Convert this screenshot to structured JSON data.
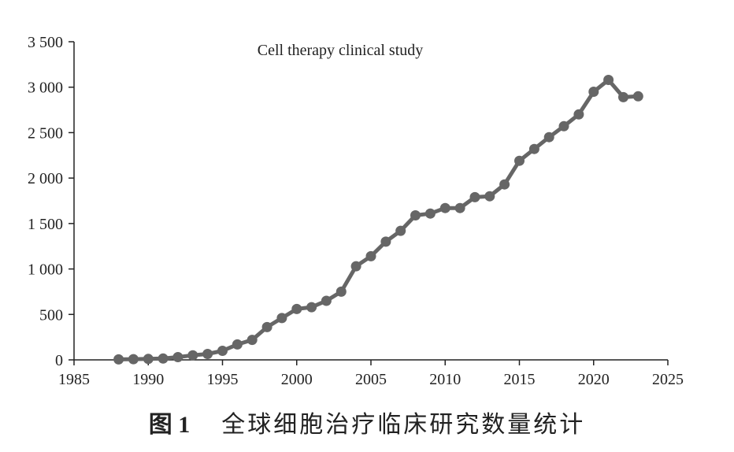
{
  "chart_data": {
    "type": "line",
    "title": "Cell therapy clinical study",
    "xlabel": "",
    "ylabel": "",
    "xlim": [
      1985,
      2025
    ],
    "ylim": [
      0,
      3500
    ],
    "xticks": [
      1985,
      1990,
      1995,
      2000,
      2005,
      2010,
      2015,
      2020,
      2025
    ],
    "xtick_labels": [
      "1985",
      "1990",
      "1995",
      "2000",
      "2005",
      "2010",
      "2015",
      "2020",
      "2025"
    ],
    "yticks": [
      0,
      500,
      1000,
      1500,
      2000,
      2500,
      3000,
      3500
    ],
    "ytick_labels": [
      "0",
      "500",
      "1 000",
      "1 500",
      "2 000",
      "2 500",
      "3 000",
      "3 500"
    ],
    "grid": false,
    "series": [
      {
        "color": "#666666",
        "x": [
          1988,
          1989,
          1990,
          1991,
          1992,
          1993,
          1994,
          1995,
          1996,
          1997,
          1998,
          1999,
          2000,
          2001,
          2002,
          2003,
          2004,
          2005,
          2006,
          2007,
          2008,
          2009,
          2010,
          2011,
          2012,
          2013,
          2014,
          2015,
          2016,
          2017,
          2018,
          2019,
          2020,
          2021,
          2022,
          2023
        ],
        "y": [
          5,
          8,
          10,
          15,
          30,
          50,
          65,
          100,
          170,
          220,
          360,
          460,
          560,
          580,
          650,
          750,
          1030,
          1140,
          1300,
          1420,
          1590,
          1610,
          1670,
          1670,
          1790,
          1800,
          1930,
          2190,
          2320,
          2450,
          2570,
          2700,
          2950,
          3080,
          2890,
          2900
        ]
      }
    ]
  },
  "caption": {
    "figure_number": "图 1",
    "figure_title": "全球细胞治疗临床研究数量统计"
  }
}
